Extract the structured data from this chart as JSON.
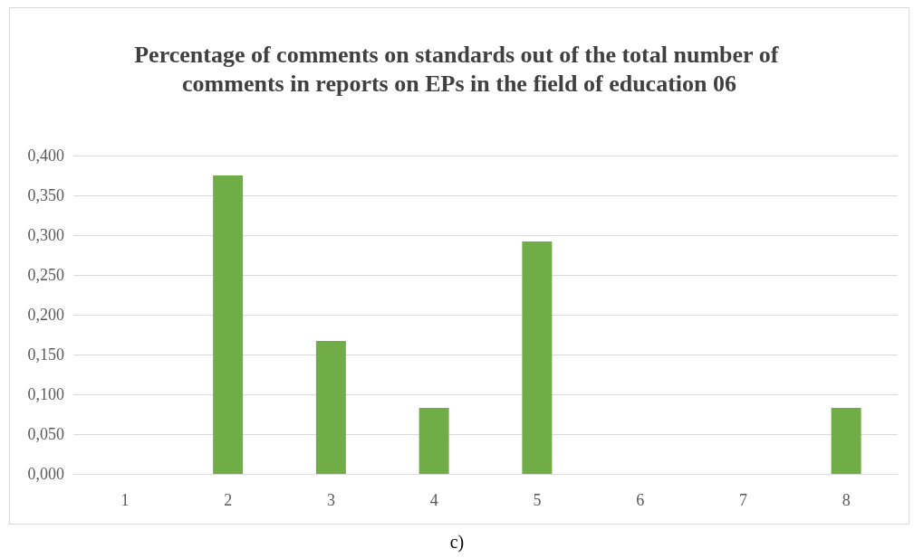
{
  "chart_data": {
    "type": "bar",
    "title": "Percentage of comments on standards out of the total number of comments in reports on EPs in the field of education 06",
    "categories": [
      "1",
      "2",
      "3",
      "4",
      "5",
      "6",
      "7",
      "8"
    ],
    "values": [
      0,
      0.375,
      0.167,
      0.083,
      0.292,
      0,
      0,
      0.083
    ],
    "color": "#70ad47",
    "ylim": [
      0,
      0.4
    ],
    "yticks": [
      {
        "value": 0,
        "label": "0,000"
      },
      {
        "value": 0.05,
        "label": "0,050"
      },
      {
        "value": 0.1,
        "label": "0,100"
      },
      {
        "value": 0.15,
        "label": "0,150"
      },
      {
        "value": 0.2,
        "label": "0,200"
      },
      {
        "value": 0.25,
        "label": "0,250"
      },
      {
        "value": 0.3,
        "label": "0,300"
      },
      {
        "value": 0.35,
        "label": "0,350"
      },
      {
        "value": 0.4,
        "label": "0,400"
      }
    ],
    "grid": "y",
    "annotations": [
      "c)"
    ]
  }
}
